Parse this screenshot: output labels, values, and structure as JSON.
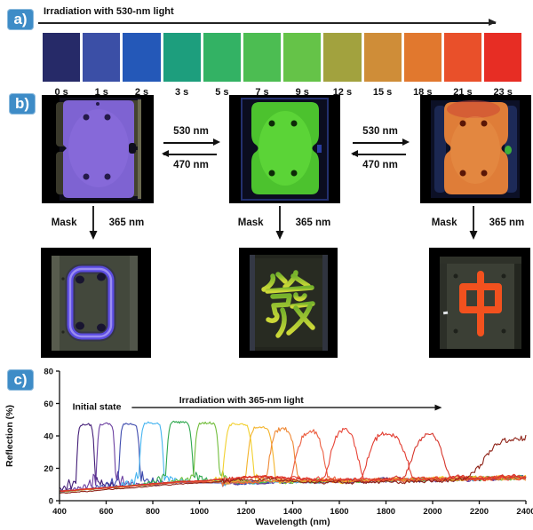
{
  "figure": {
    "badge_color": "#3e8cc7",
    "panel_a": {
      "label": "a)",
      "title": "Irradiation with 530-nm light",
      "swatches": [
        {
          "time": "0 s",
          "color": "#262a68"
        },
        {
          "time": "1 s",
          "color": "#3b4fa6"
        },
        {
          "time": "2 s",
          "color": "#2458b8"
        },
        {
          "time": "3 s",
          "color": "#1d9e7d"
        },
        {
          "time": "5 s",
          "color": "#33b264"
        },
        {
          "time": "7 s",
          "color": "#4cbd52"
        },
        {
          "time": "9 s",
          "color": "#65c348"
        },
        {
          "time": "12 s",
          "color": "#a2a23e"
        },
        {
          "time": "15 s",
          "color": "#cf8d38"
        },
        {
          "time": "18 s",
          "color": "#e1782e"
        },
        {
          "time": "21 s",
          "color": "#e9502a"
        },
        {
          "time": "23 s",
          "color": "#e72d24"
        }
      ]
    },
    "panel_b": {
      "label": "b)",
      "forward_label": "530 nm",
      "backward_label": "470 nm",
      "mask_label": "Mask",
      "uv_label": "365 nm",
      "samples": [
        {
          "name": "purple-film",
          "color": "#7e63d2"
        },
        {
          "name": "green-film",
          "color": "#4cc22e"
        },
        {
          "name": "orange-film",
          "color": "#df7d38"
        }
      ],
      "patterns": [
        {
          "name": "rounded-rectangle-outline",
          "color": "#5b4ce0"
        },
        {
          "name": "chinese-character-fa",
          "color": "#a6c832"
        },
        {
          "name": "chinese-character-zhong",
          "color": "#f2511e"
        }
      ]
    },
    "panel_c": {
      "label": "c)"
    }
  },
  "chart_data": {
    "type": "line",
    "xlabel": "Wavelength (nm)",
    "ylabel": "Reflection (%)",
    "xlim": [
      400,
      2400
    ],
    "ylim": [
      0,
      80
    ],
    "xticks": [
      400,
      600,
      800,
      1000,
      1200,
      1400,
      1600,
      1800,
      2000,
      2200,
      2400
    ],
    "yticks": [
      0,
      20,
      40,
      60,
      80
    ],
    "annotations": [
      {
        "text": "Initial state",
        "x_nm": 560,
        "y_pct": 58
      },
      {
        "text": "Irradiation with 365-nm light",
        "x_nm": 1180,
        "y_pct": 62,
        "arrow": {
          "from_nm": 710,
          "to_nm": 2040,
          "y_pct": 57.5
        }
      }
    ],
    "series": [
      {
        "color": "#431d77",
        "plateau_nm": [
          472,
          552
        ],
        "height_pct": 47,
        "flatness": 4,
        "ring": 13
      },
      {
        "color": "#6b3fa0",
        "plateau_nm": [
          558,
          640
        ],
        "height_pct": 47.5,
        "flatness": 4,
        "ring": 13
      },
      {
        "color": "#3d4aad",
        "plateau_nm": [
          654,
          746
        ],
        "height_pct": 47.5,
        "flatness": 4,
        "ring": 12
      },
      {
        "color": "#45b4f0",
        "plateau_nm": [
          741,
          848
        ],
        "height_pct": 48,
        "flatness": 4,
        "ring": 11
      },
      {
        "color": "#2fa84e",
        "plateau_nm": [
          856,
          974
        ],
        "height_pct": 48.5,
        "flatness": 4,
        "ring": 10
      },
      {
        "color": "#71bd3b",
        "plateau_nm": [
          976,
          1086
        ],
        "height_pct": 48,
        "flatness": 4,
        "ring": 9
      },
      {
        "color": "#f2d02e",
        "plateau_nm": [
          1100,
          1234
        ],
        "height_pct": 47.5,
        "flatness": 3,
        "ring": 7
      },
      {
        "color": "#f3b32b",
        "plateau_nm": [
          1200,
          1324
        ],
        "height_pct": 45.5,
        "flatness": 2.5,
        "ring": 5
      },
      {
        "color": "#ef8834",
        "plateau_nm": [
          1290,
          1420
        ],
        "height_pct": 44,
        "flatness": 2,
        "ring": 4
      },
      {
        "color": "#ec5f41",
        "plateau_nm": [
          1396,
          1548
        ],
        "height_pct": 42.5,
        "flatness": 1.6,
        "ring": 3
      },
      {
        "color": "#e74537",
        "plateau_nm": [
          1540,
          1700
        ],
        "height_pct": 42,
        "flatness": 1.5,
        "ring": 3
      },
      {
        "color": "#e23b2f",
        "plateau_nm": [
          1700,
          1910
        ],
        "height_pct": 42,
        "flatness": 1.4,
        "ring": 2.5
      },
      {
        "color": "#d6352b",
        "plateau_nm": [
          1880,
          2075
        ],
        "height_pct": 40,
        "flatness": 1.3,
        "ring": 2.5
      },
      {
        "color": "#8f2318",
        "plateau_nm": [
          2150,
          2600
        ],
        "height_pct": 39,
        "flatness": 1.2,
        "ring": 2
      }
    ]
  }
}
